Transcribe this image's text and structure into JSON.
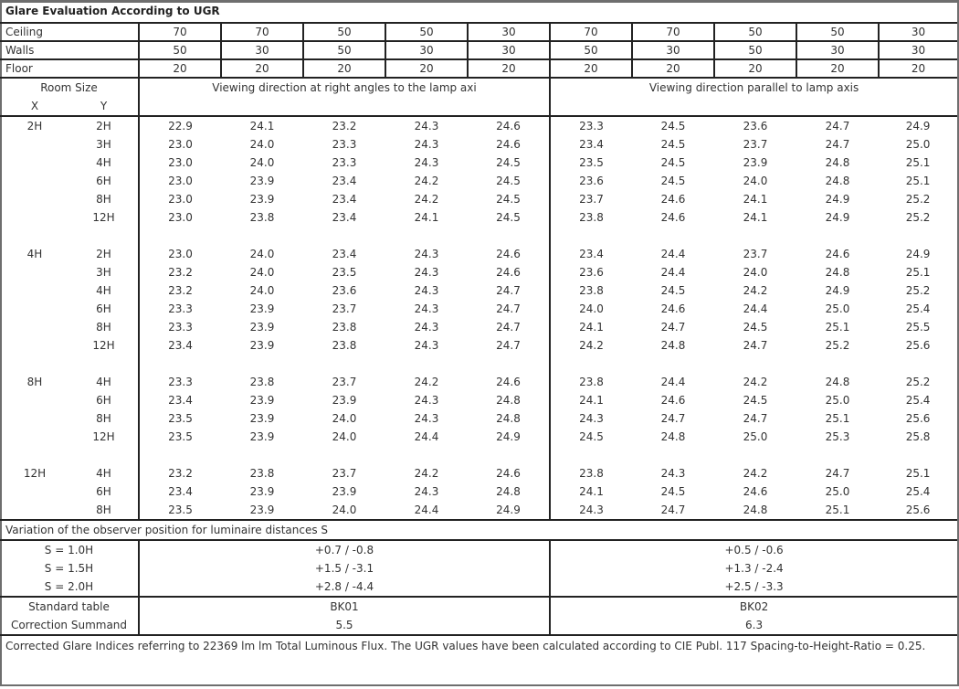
{
  "title": "Glare Evaluation According to UGR",
  "reflectances": [
    {
      "label": "Ceiling",
      "values": [
        "70",
        "70",
        "50",
        "50",
        "30",
        "70",
        "70",
        "50",
        "50",
        "30"
      ]
    },
    {
      "label": "Walls",
      "values": [
        "50",
        "30",
        "50",
        "30",
        "30",
        "50",
        "30",
        "50",
        "30",
        "30"
      ]
    },
    {
      "label": "Floor",
      "values": [
        "20",
        "20",
        "20",
        "20",
        "20",
        "20",
        "20",
        "20",
        "20",
        "20"
      ]
    }
  ],
  "room_size_label": "Room Size",
  "x_label": "X",
  "y_label": "Y",
  "direction_perpendicular": "Viewing direction at right angles to the lamp axi",
  "direction_parallel": "Viewing direction parallel to lamp axis",
  "groups": [
    {
      "x": "2H",
      "rows": [
        {
          "y": "2H",
          "perp": [
            "22.9",
            "24.1",
            "23.2",
            "24.3",
            "24.6"
          ],
          "para": [
            "23.3",
            "24.5",
            "23.6",
            "24.7",
            "24.9"
          ]
        },
        {
          "y": "3H",
          "perp": [
            "23.0",
            "24.0",
            "23.3",
            "24.3",
            "24.6"
          ],
          "para": [
            "23.4",
            "24.5",
            "23.7",
            "24.7",
            "25.0"
          ]
        },
        {
          "y": "4H",
          "perp": [
            "23.0",
            "24.0",
            "23.3",
            "24.3",
            "24.5"
          ],
          "para": [
            "23.5",
            "24.5",
            "23.9",
            "24.8",
            "25.1"
          ]
        },
        {
          "y": "6H",
          "perp": [
            "23.0",
            "23.9",
            "23.4",
            "24.2",
            "24.5"
          ],
          "para": [
            "23.6",
            "24.5",
            "24.0",
            "24.8",
            "25.1"
          ]
        },
        {
          "y": "8H",
          "perp": [
            "23.0",
            "23.9",
            "23.4",
            "24.2",
            "24.5"
          ],
          "para": [
            "23.7",
            "24.6",
            "24.1",
            "24.9",
            "25.2"
          ]
        },
        {
          "y": "12H",
          "perp": [
            "23.0",
            "23.8",
            "23.4",
            "24.1",
            "24.5"
          ],
          "para": [
            "23.8",
            "24.6",
            "24.1",
            "24.9",
            "25.2"
          ]
        }
      ]
    },
    {
      "x": "4H",
      "rows": [
        {
          "y": "2H",
          "perp": [
            "23.0",
            "24.0",
            "23.4",
            "24.3",
            "24.6"
          ],
          "para": [
            "23.4",
            "24.4",
            "23.7",
            "24.6",
            "24.9"
          ]
        },
        {
          "y": "3H",
          "perp": [
            "23.2",
            "24.0",
            "23.5",
            "24.3",
            "24.6"
          ],
          "para": [
            "23.6",
            "24.4",
            "24.0",
            "24.8",
            "25.1"
          ]
        },
        {
          "y": "4H",
          "perp": [
            "23.2",
            "24.0",
            "23.6",
            "24.3",
            "24.7"
          ],
          "para": [
            "23.8",
            "24.5",
            "24.2",
            "24.9",
            "25.2"
          ]
        },
        {
          "y": "6H",
          "perp": [
            "23.3",
            "23.9",
            "23.7",
            "24.3",
            "24.7"
          ],
          "para": [
            "24.0",
            "24.6",
            "24.4",
            "25.0",
            "25.4"
          ]
        },
        {
          "y": "8H",
          "perp": [
            "23.3",
            "23.9",
            "23.8",
            "24.3",
            "24.7"
          ],
          "para": [
            "24.1",
            "24.7",
            "24.5",
            "25.1",
            "25.5"
          ]
        },
        {
          "y": "12H",
          "perp": [
            "23.4",
            "23.9",
            "23.8",
            "24.3",
            "24.7"
          ],
          "para": [
            "24.2",
            "24.8",
            "24.7",
            "25.2",
            "25.6"
          ]
        }
      ]
    },
    {
      "x": "8H",
      "rows": [
        {
          "y": "4H",
          "perp": [
            "23.3",
            "23.8",
            "23.7",
            "24.2",
            "24.6"
          ],
          "para": [
            "23.8",
            "24.4",
            "24.2",
            "24.8",
            "25.2"
          ]
        },
        {
          "y": "6H",
          "perp": [
            "23.4",
            "23.9",
            "23.9",
            "24.3",
            "24.8"
          ],
          "para": [
            "24.1",
            "24.6",
            "24.5",
            "25.0",
            "25.4"
          ]
        },
        {
          "y": "8H",
          "perp": [
            "23.5",
            "23.9",
            "24.0",
            "24.3",
            "24.8"
          ],
          "para": [
            "24.3",
            "24.7",
            "24.7",
            "25.1",
            "25.6"
          ]
        },
        {
          "y": "12H",
          "perp": [
            "23.5",
            "23.9",
            "24.0",
            "24.4",
            "24.9"
          ],
          "para": [
            "24.5",
            "24.8",
            "25.0",
            "25.3",
            "25.8"
          ]
        }
      ]
    },
    {
      "x": "12H",
      "rows": [
        {
          "y": "4H",
          "perp": [
            "23.2",
            "23.8",
            "23.7",
            "24.2",
            "24.6"
          ],
          "para": [
            "23.8",
            "24.3",
            "24.2",
            "24.7",
            "25.1"
          ]
        },
        {
          "y": "6H",
          "perp": [
            "23.4",
            "23.9",
            "23.9",
            "24.3",
            "24.8"
          ],
          "para": [
            "24.1",
            "24.5",
            "24.6",
            "25.0",
            "25.4"
          ]
        },
        {
          "y": "8H",
          "perp": [
            "23.5",
            "23.9",
            "24.0",
            "24.4",
            "24.9"
          ],
          "para": [
            "24.3",
            "24.7",
            "24.8",
            "25.1",
            "25.6"
          ]
        }
      ]
    }
  ],
  "variation_title": "Variation of the observer position for luminaire distances S",
  "variation": [
    {
      "label": "S = 1.0H",
      "perp": "+0.7 / -0.8",
      "para": "+0.5 / -0.6"
    },
    {
      "label": "S = 1.5H",
      "perp": "+1.5 / -3.1",
      "para": "+1.3 / -2.4"
    },
    {
      "label": "S = 2.0H",
      "perp": "+2.8 / -4.4",
      "para": "+2.5 / -3.3"
    }
  ],
  "standard_table": {
    "label": "Standard table",
    "perp": "BK01",
    "para": "BK02"
  },
  "correction_summand": {
    "label": "Correction Summand",
    "perp": "5.5",
    "para": "6.3"
  },
  "footnote": "Corrected Glare Indices referring to 22369 lm lm Total Luminous Flux. The UGR values have been calculated according to CIE Publ. 117    Spacing-to-Height-Ratio = 0.25."
}
